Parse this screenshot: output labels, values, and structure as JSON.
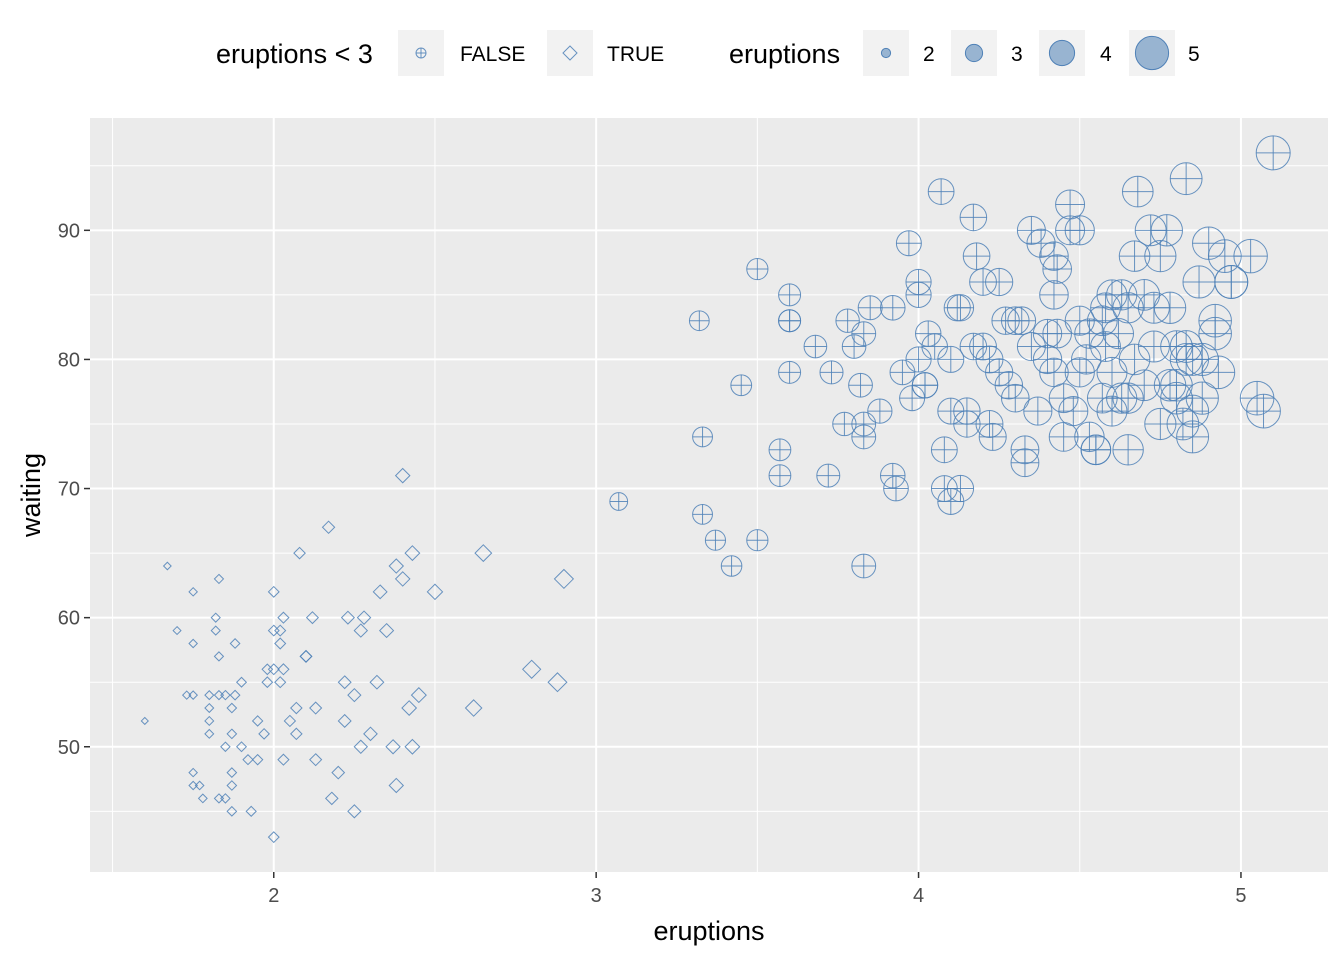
{
  "chart_data": {
    "type": "scatter",
    "title": "",
    "xlabel": "eruptions",
    "ylabel": "waiting",
    "xlim": [
      1.43,
      5.27
    ],
    "ylim": [
      40.3,
      98.7
    ],
    "x_ticks": [
      2,
      3,
      4,
      5
    ],
    "y_ticks": [
      50,
      60,
      70,
      80,
      90
    ],
    "grid": true,
    "legend_position": "top",
    "point_color": "#4f81b7",
    "legends": {
      "shape": {
        "title": "eruptions < 3",
        "entries": [
          {
            "label": "FALSE",
            "shape": "circle-plus"
          },
          {
            "label": "TRUE",
            "shape": "diamond"
          }
        ]
      },
      "size": {
        "title": "eruptions",
        "entries": [
          {
            "label": "2",
            "value": 2
          },
          {
            "label": "3",
            "value": 3
          },
          {
            "label": "4",
            "value": 4
          },
          {
            "label": "5",
            "value": 5
          }
        ]
      }
    },
    "series": [
      {
        "shape": "diamond",
        "points": [
          [
            1.6,
            52
          ],
          [
            1.67,
            64
          ],
          [
            1.7,
            59
          ],
          [
            1.73,
            54
          ],
          [
            1.75,
            54
          ],
          [
            1.75,
            62
          ],
          [
            1.75,
            47
          ],
          [
            1.75,
            48
          ],
          [
            1.75,
            58
          ],
          [
            1.77,
            47
          ],
          [
            1.78,
            46
          ],
          [
            1.8,
            51
          ],
          [
            1.8,
            53
          ],
          [
            1.8,
            52
          ],
          [
            1.8,
            54
          ],
          [
            1.82,
            60
          ],
          [
            1.82,
            59
          ],
          [
            1.83,
            46
          ],
          [
            1.83,
            63
          ],
          [
            1.83,
            57
          ],
          [
            1.83,
            54
          ],
          [
            1.85,
            50
          ],
          [
            1.85,
            54
          ],
          [
            1.85,
            46
          ],
          [
            1.87,
            53
          ],
          [
            1.87,
            47
          ],
          [
            1.87,
            45
          ],
          [
            1.87,
            48
          ],
          [
            1.87,
            51
          ],
          [
            1.88,
            58
          ],
          [
            1.88,
            54
          ],
          [
            1.9,
            55
          ],
          [
            1.9,
            50
          ],
          [
            1.92,
            49
          ],
          [
            1.93,
            45
          ],
          [
            1.95,
            52
          ],
          [
            1.95,
            49
          ],
          [
            1.97,
            51
          ],
          [
            1.98,
            55
          ],
          [
            1.98,
            56
          ],
          [
            2.0,
            56
          ],
          [
            2.0,
            62
          ],
          [
            2.0,
            59
          ],
          [
            2.0,
            43
          ],
          [
            2.02,
            55
          ],
          [
            2.02,
            59
          ],
          [
            2.02,
            58
          ],
          [
            2.03,
            60
          ],
          [
            2.03,
            56
          ],
          [
            2.03,
            49
          ],
          [
            2.05,
            52
          ],
          [
            2.07,
            53
          ],
          [
            2.07,
            51
          ],
          [
            2.08,
            65
          ],
          [
            2.1,
            57
          ],
          [
            2.1,
            57
          ],
          [
            2.12,
            60
          ],
          [
            2.13,
            49
          ],
          [
            2.13,
            53
          ],
          [
            2.17,
            67
          ],
          [
            2.18,
            46
          ],
          [
            2.2,
            48
          ],
          [
            2.22,
            55
          ],
          [
            2.22,
            52
          ],
          [
            2.23,
            60
          ],
          [
            2.25,
            45
          ],
          [
            2.25,
            54
          ],
          [
            2.27,
            50
          ],
          [
            2.27,
            59
          ],
          [
            2.28,
            60
          ],
          [
            2.3,
            51
          ],
          [
            2.32,
            55
          ],
          [
            2.33,
            62
          ],
          [
            2.35,
            59
          ],
          [
            2.37,
            50
          ],
          [
            2.38,
            64
          ],
          [
            2.38,
            47
          ],
          [
            2.4,
            63
          ],
          [
            2.4,
            71
          ],
          [
            2.42,
            53
          ],
          [
            2.43,
            65
          ],
          [
            2.43,
            50
          ],
          [
            2.45,
            54
          ],
          [
            2.5,
            62
          ],
          [
            2.62,
            53
          ],
          [
            2.65,
            65
          ],
          [
            2.8,
            56
          ],
          [
            2.88,
            55
          ],
          [
            2.9,
            63
          ]
        ]
      },
      {
        "shape": "circle-plus",
        "points": [
          [
            3.07,
            69
          ],
          [
            3.32,
            83
          ],
          [
            3.33,
            74
          ],
          [
            3.33,
            68
          ],
          [
            3.37,
            66
          ],
          [
            3.42,
            64
          ],
          [
            3.45,
            78
          ],
          [
            3.5,
            87
          ],
          [
            3.5,
            66
          ],
          [
            3.57,
            73
          ],
          [
            3.57,
            71
          ],
          [
            3.6,
            83
          ],
          [
            3.6,
            83
          ],
          [
            3.6,
            85
          ],
          [
            3.6,
            79
          ],
          [
            3.68,
            81
          ],
          [
            3.72,
            71
          ],
          [
            3.73,
            79
          ],
          [
            3.77,
            75
          ],
          [
            3.78,
            83
          ],
          [
            3.8,
            81
          ],
          [
            3.82,
            78
          ],
          [
            3.83,
            82
          ],
          [
            3.83,
            64
          ],
          [
            3.83,
            74
          ],
          [
            3.83,
            75
          ],
          [
            3.85,
            84
          ],
          [
            3.88,
            76
          ],
          [
            3.92,
            84
          ],
          [
            3.92,
            71
          ],
          [
            3.93,
            70
          ],
          [
            3.95,
            79
          ],
          [
            3.97,
            89
          ],
          [
            3.98,
            77
          ],
          [
            4.0,
            86
          ],
          [
            4.0,
            85
          ],
          [
            4.0,
            80
          ],
          [
            4.02,
            78
          ],
          [
            4.02,
            78
          ],
          [
            4.03,
            82
          ],
          [
            4.05,
            81
          ],
          [
            4.07,
            93
          ],
          [
            4.08,
            73
          ],
          [
            4.08,
            70
          ],
          [
            4.1,
            80
          ],
          [
            4.1,
            76
          ],
          [
            4.1,
            69
          ],
          [
            4.12,
            84
          ],
          [
            4.13,
            84
          ],
          [
            4.13,
            70
          ],
          [
            4.15,
            76
          ],
          [
            4.15,
            75
          ],
          [
            4.17,
            91
          ],
          [
            4.17,
            81
          ],
          [
            4.18,
            88
          ],
          [
            4.2,
            86
          ],
          [
            4.2,
            81
          ],
          [
            4.22,
            80
          ],
          [
            4.22,
            75
          ],
          [
            4.23,
            74
          ],
          [
            4.25,
            86
          ],
          [
            4.25,
            79
          ],
          [
            4.27,
            83
          ],
          [
            4.28,
            78
          ],
          [
            4.3,
            77
          ],
          [
            4.3,
            83
          ],
          [
            4.32,
            83
          ],
          [
            4.33,
            72
          ],
          [
            4.33,
            73
          ],
          [
            4.35,
            81
          ],
          [
            4.35,
            90
          ],
          [
            4.37,
            76
          ],
          [
            4.38,
            89
          ],
          [
            4.4,
            82
          ],
          [
            4.4,
            80
          ],
          [
            4.42,
            88
          ],
          [
            4.42,
            79
          ],
          [
            4.42,
            85
          ],
          [
            4.43,
            87
          ],
          [
            4.43,
            82
          ],
          [
            4.45,
            77
          ],
          [
            4.45,
            74
          ],
          [
            4.47,
            92
          ],
          [
            4.47,
            90
          ],
          [
            4.48,
            76
          ],
          [
            4.5,
            79
          ],
          [
            4.5,
            83
          ],
          [
            4.5,
            90
          ],
          [
            4.52,
            80
          ],
          [
            4.53,
            82
          ],
          [
            4.53,
            74
          ],
          [
            4.55,
            73
          ],
          [
            4.55,
            73
          ],
          [
            4.57,
            83
          ],
          [
            4.57,
            77
          ],
          [
            4.58,
            81
          ],
          [
            4.58,
            84
          ],
          [
            4.6,
            76
          ],
          [
            4.6,
            85
          ],
          [
            4.6,
            79
          ],
          [
            4.62,
            82
          ],
          [
            4.63,
            77
          ],
          [
            4.63,
            85
          ],
          [
            4.65,
            84
          ],
          [
            4.65,
            77
          ],
          [
            4.65,
            73
          ],
          [
            4.67,
            80
          ],
          [
            4.67,
            88
          ],
          [
            4.68,
            93
          ],
          [
            4.7,
            85
          ],
          [
            4.7,
            78
          ],
          [
            4.72,
            90
          ],
          [
            4.73,
            84
          ],
          [
            4.73,
            81
          ],
          [
            4.75,
            75
          ],
          [
            4.75,
            88
          ],
          [
            4.77,
            90
          ],
          [
            4.78,
            78
          ],
          [
            4.78,
            84
          ],
          [
            4.8,
            78
          ],
          [
            4.8,
            81
          ],
          [
            4.8,
            77
          ],
          [
            4.82,
            75
          ],
          [
            4.83,
            80
          ],
          [
            4.83,
            81
          ],
          [
            4.83,
            94
          ],
          [
            4.85,
            80
          ],
          [
            4.85,
            76
          ],
          [
            4.85,
            74
          ],
          [
            4.87,
            86
          ],
          [
            4.88,
            77
          ],
          [
            4.88,
            80
          ],
          [
            4.9,
            89
          ],
          [
            4.92,
            82
          ],
          [
            4.92,
            83
          ],
          [
            4.93,
            79
          ],
          [
            4.95,
            88
          ],
          [
            4.97,
            86
          ],
          [
            4.97,
            86
          ],
          [
            5.03,
            88
          ],
          [
            5.05,
            77
          ],
          [
            5.07,
            76
          ],
          [
            5.1,
            96
          ]
        ]
      }
    ]
  }
}
